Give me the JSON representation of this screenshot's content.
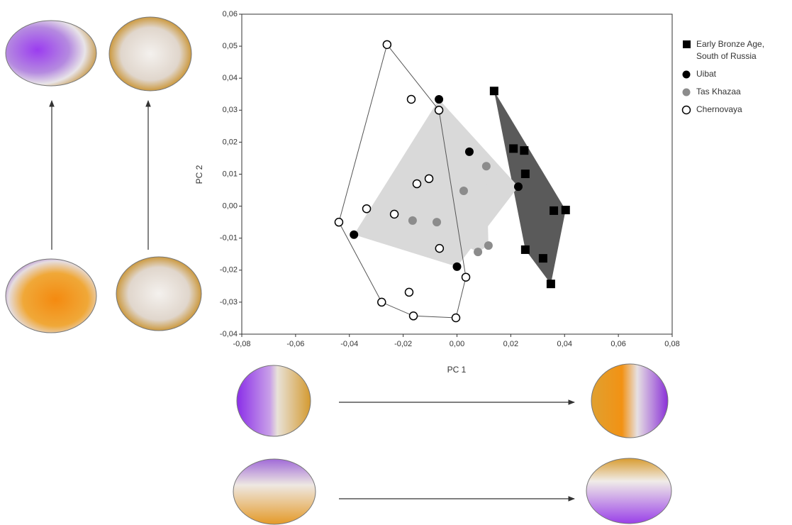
{
  "chart_data": {
    "type": "scatter",
    "x_label": "PC 1",
    "y_label": "PC 2",
    "xlim": [
      -0.08,
      0.08
    ],
    "ylim": [
      -0.04,
      0.06
    ],
    "xticks": [
      {
        "value": -0.08,
        "label": "-0,08"
      },
      {
        "value": -0.06,
        "label": "-0,06"
      },
      {
        "value": -0.04,
        "label": "-0,04"
      },
      {
        "value": -0.02,
        "label": "-0,02"
      },
      {
        "value": 0,
        "label": "0,00"
      },
      {
        "value": 0.02,
        "label": "0,02"
      },
      {
        "value": 0.04,
        "label": "0,04"
      },
      {
        "value": 0.06,
        "label": "0,06"
      },
      {
        "value": 0.08,
        "label": "0,08"
      }
    ],
    "yticks": [
      {
        "value": -0.04,
        "label": "-0,04"
      },
      {
        "value": -0.03,
        "label": "-0,03"
      },
      {
        "value": -0.02,
        "label": "-0,02"
      },
      {
        "value": -0.01,
        "label": "-0,01"
      },
      {
        "value": 0,
        "label": "0,00"
      },
      {
        "value": 0.01,
        "label": "0,01"
      },
      {
        "value": 0.02,
        "label": "0,02"
      },
      {
        "value": 0.03,
        "label": "0,03"
      },
      {
        "value": 0.04,
        "label": "0,04"
      },
      {
        "value": 0.05,
        "label": "0,05"
      },
      {
        "value": 0.06,
        "label": "0,06"
      }
    ],
    "series": [
      {
        "name": "Early Bronze Age, South of Russia",
        "marker": "square",
        "color": "#000000",
        "hull_fill": "#5a5a5a",
        "x": [
          0.0138,
          0.021,
          0.025,
          0.0254,
          0.036,
          0.0404,
          0.0254,
          0.032,
          0.0349
        ],
        "values": [
          0.036,
          0.018,
          0.0174,
          0.0101,
          -0.0014,
          -0.0012,
          -0.0136,
          -0.0163,
          -0.0243
        ]
      },
      {
        "name": "Uibat",
        "marker": "circle",
        "color": "#000000",
        "hull_fill": "#d9d9d9",
        "x": [
          -0.0067,
          0.0046,
          0.0228,
          -0.0383,
          0.0
        ],
        "values": [
          0.0334,
          0.017,
          0.0061,
          -0.0089,
          -0.0189
        ]
      },
      {
        "name": "Tas Khazaa",
        "marker": "circle",
        "color": "#8c8c8c",
        "hull_fill": "#d9d9d9",
        "x": [
          0.0109,
          0.0025,
          -0.0165,
          -0.0075,
          0.0117,
          0.0078
        ],
        "values": [
          0.0125,
          0.0048,
          -0.0045,
          -0.005,
          -0.0123,
          -0.0143
        ]
      },
      {
        "name": "Chernovaya",
        "marker": "open-circle",
        "color": "#000000",
        "hull_fill": "none",
        "x": [
          -0.026,
          -0.017,
          -0.0067,
          -0.0104,
          -0.0149,
          -0.0336,
          -0.0233,
          -0.0439,
          -0.0065,
          0.0033,
          -0.0178,
          -0.028,
          -0.0162,
          -0.0004
        ],
        "values": [
          0.0505,
          0.0334,
          0.03,
          0.0086,
          0.007,
          -0.0008,
          -0.0025,
          -0.005,
          -0.0132,
          -0.0222,
          -0.0269,
          -0.03,
          -0.0343,
          -0.0349
        ]
      }
    ]
  }
}
